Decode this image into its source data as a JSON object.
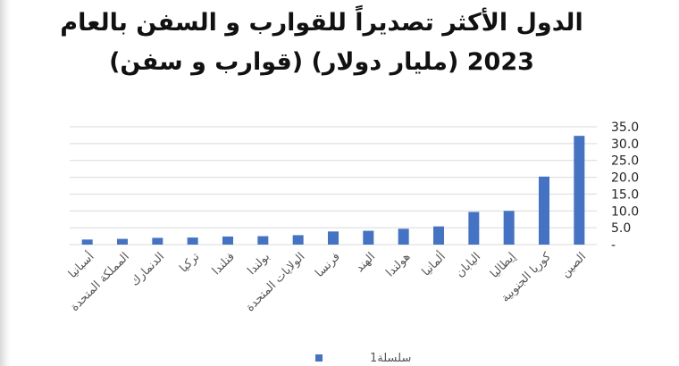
{
  "chart_data": {
    "type": "bar",
    "title_lines": [
      "الدول الأكثر تصديراً للقوارب و السفن بالعام",
      "2023 (مليار دولار) (قوارب و سفن)"
    ],
    "categories": [
      "الصين",
      "كوريا الجنوبية",
      "إيطاليا",
      "اليابان",
      "ألمانيا",
      "هولندا",
      "الهند",
      "فرنسا",
      "الولايات المتحدة",
      "بولندا",
      "فنلندا",
      "تركيا",
      "الدنمارك",
      "المملكة المتحدة",
      "أسبانيا"
    ],
    "series": [
      {
        "name": "سلسلة1",
        "values": [
          32.3,
          20.2,
          10.0,
          9.7,
          5.4,
          4.7,
          4.1,
          3.9,
          2.8,
          2.5,
          2.4,
          2.1,
          2.0,
          1.7,
          1.5
        ]
      }
    ],
    "y_tick_labels": [
      "35.0",
      "30.0",
      "25.0",
      "20.0",
      "15.0",
      "10.0",
      "5.0",
      "-"
    ],
    "ylim": [
      0,
      35
    ],
    "y_axis_side": "right",
    "legend_position": "bottom",
    "grid": true,
    "colors": {
      "bar": "#4472c4",
      "grid": "#d9d9d9"
    }
  }
}
